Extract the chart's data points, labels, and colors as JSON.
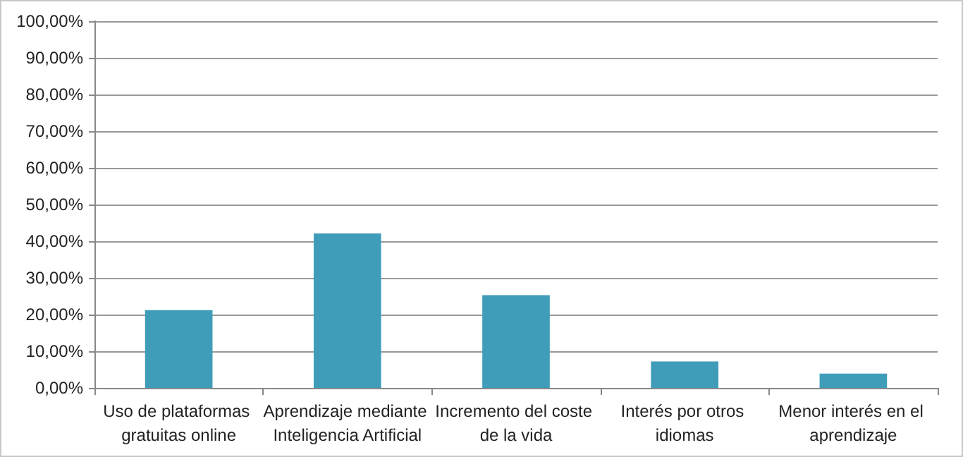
{
  "chart_data": {
    "type": "bar",
    "categories": [
      "Uso de plataformas gratuitas online",
      "Aprendizaje mediante Inteligencia Artificial",
      "Incremento del coste de la vida",
      "Interés por otros idiomas",
      "Menor interés en el aprendizaje"
    ],
    "values": [
      21.2,
      42.1,
      25.3,
      7.2,
      3.9
    ],
    "color": "#3f9dba",
    "ylim": [
      0,
      100
    ],
    "yticks": [
      {
        "value": 0,
        "label": "0,00%"
      },
      {
        "value": 10,
        "label": "10,00%"
      },
      {
        "value": 20,
        "label": "20,00%"
      },
      {
        "value": 30,
        "label": "30,00%"
      },
      {
        "value": 40,
        "label": "40,00%"
      },
      {
        "value": 50,
        "label": "50,00%"
      },
      {
        "value": 60,
        "label": "60,00%"
      },
      {
        "value": 70,
        "label": "70,00%"
      },
      {
        "value": 80,
        "label": "80,00%"
      },
      {
        "value": 90,
        "label": "90,00%"
      },
      {
        "value": 100,
        "label": "100,00%"
      }
    ],
    "grid": "y"
  }
}
